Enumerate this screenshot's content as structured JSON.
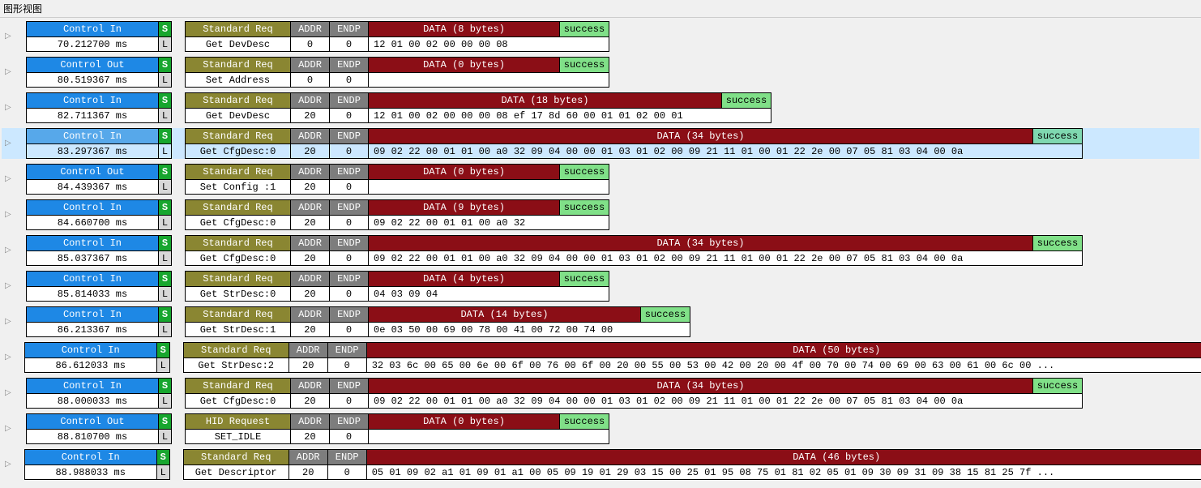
{
  "panelTitle": "图形视图",
  "labels": {
    "stdReq": "Standard Req",
    "hidReq": "HID Request",
    "addr": "ADDR",
    "endp": "ENDP",
    "success": "success",
    "sBadge": "S",
    "lBadge": "L"
  },
  "colors": {
    "controlBlue": "#1e88e5",
    "reqOlive": "#8a8632",
    "addrGray": "#7d7d7d",
    "dataRed": "#8b0e16",
    "successGreen": "#80e088",
    "badgeGreen": "#17a62e",
    "selectedBg": "#cce8ff"
  },
  "dataWidths": {
    "b8": 236,
    "b18": 436,
    "b34": 820,
    "b0": 236,
    "b9": 236,
    "b4": 236,
    "b14": 336,
    "b50": 1160,
    "b46": 1160
  },
  "rows": [
    {
      "dir": "Control In",
      "time": "70.212700 ms",
      "reqType": "std",
      "req": "Get DevDesc",
      "addr": "0",
      "endp": "0",
      "dataH": "DATA (8 bytes)",
      "dataV": "12 01 00 02 00 00 00 08",
      "dw": 236,
      "selected": false
    },
    {
      "dir": "Control Out",
      "time": "80.519367 ms",
      "reqType": "std",
      "req": "Set Address",
      "addr": "0",
      "endp": "0",
      "dataH": "DATA (0 bytes)",
      "dataV": "",
      "dw": 236,
      "selected": false
    },
    {
      "dir": "Control In",
      "time": "82.711367 ms",
      "reqType": "std",
      "req": "Get DevDesc",
      "addr": "20",
      "endp": "0",
      "dataH": "DATA (18 bytes)",
      "dataV": "12 01 00 02 00 00 00 08 ef 17 8d 60 00 01 01 02 00 01",
      "dw": 436,
      "selected": false
    },
    {
      "dir": "Control In",
      "time": "83.297367 ms",
      "reqType": "std",
      "req": "Get CfgDesc:0",
      "addr": "20",
      "endp": "0",
      "dataH": "DATA (34 bytes)",
      "dataV": "09 02 22 00 01 01 00 a0 32 09 04 00 00 01 03 01 02 00 09 21 11 01 00 01 22 2e 00 07 05 81 03 04 00 0a",
      "dw": 820,
      "selected": true
    },
    {
      "dir": "Control Out",
      "time": "84.439367 ms",
      "reqType": "std",
      "req": "Set Config :1",
      "addr": "20",
      "endp": "0",
      "dataH": "DATA (0 bytes)",
      "dataV": "",
      "dw": 236,
      "selected": false
    },
    {
      "dir": "Control In",
      "time": "84.660700 ms",
      "reqType": "std",
      "req": "Get CfgDesc:0",
      "addr": "20",
      "endp": "0",
      "dataH": "DATA (9 bytes)",
      "dataV": "09 02 22 00 01 01 00 a0 32",
      "dw": 236,
      "selected": false
    },
    {
      "dir": "Control In",
      "time": "85.037367 ms",
      "reqType": "std",
      "req": "Get CfgDesc:0",
      "addr": "20",
      "endp": "0",
      "dataH": "DATA (34 bytes)",
      "dataV": "09 02 22 00 01 01 00 a0 32 09 04 00 00 01 03 01 02 00 09 21 11 01 00 01 22 2e 00 07 05 81 03 04 00 0a",
      "dw": 820,
      "selected": false
    },
    {
      "dir": "Control In",
      "time": "85.814033 ms",
      "reqType": "std",
      "req": "Get StrDesc:0",
      "addr": "20",
      "endp": "0",
      "dataH": "DATA (4 bytes)",
      "dataV": "04 03 09 04",
      "dw": 236,
      "selected": false
    },
    {
      "dir": "Control In",
      "time": "86.213367 ms",
      "reqType": "std",
      "req": "Get StrDesc:1",
      "addr": "20",
      "endp": "0",
      "dataH": "DATA (14 bytes)",
      "dataV": "0e 03 50 00 69 00 78 00 41 00 72 00 74 00",
      "dw": 336,
      "selected": false
    },
    {
      "dir": "Control In",
      "time": "86.612033 ms",
      "reqType": "std",
      "req": "Get StrDesc:2",
      "addr": "20",
      "endp": "0",
      "dataH": "DATA (50 bytes)",
      "dataV": "32 03 6c 00 65 00 6e 00 6f 00 76 00 6f 00 20 00 55 00 53 00 42 00 20 00 4f 00 70 00 74 00 69 00 63 00 61 00 6c 00 ...",
      "dw": 1160,
      "selected": false
    },
    {
      "dir": "Control In",
      "time": "88.000033 ms",
      "reqType": "std",
      "req": "Get CfgDesc:0",
      "addr": "20",
      "endp": "0",
      "dataH": "DATA (34 bytes)",
      "dataV": "09 02 22 00 01 01 00 a0 32 09 04 00 00 01 03 01 02 00 09 21 11 01 00 01 22 2e 00 07 05 81 03 04 00 0a",
      "dw": 820,
      "selected": false
    },
    {
      "dir": "Control Out",
      "time": "88.810700 ms",
      "reqType": "hid",
      "req": "SET_IDLE",
      "addr": "20",
      "endp": "0",
      "dataH": "DATA (0 bytes)",
      "dataV": "",
      "dw": 236,
      "selected": false
    },
    {
      "dir": "Control In",
      "time": "88.988033 ms",
      "reqType": "std",
      "req": "Get Descriptor",
      "addr": "20",
      "endp": "0",
      "dataH": "DATA (46 bytes)",
      "dataV": "05 01 09 02 a1 01 09 01 a1 00 05 09 19 01 29 03 15 00 25 01 95 08 75 01 81 02 05 01 09 30 09 31 09 38 15 81 25 7f ...",
      "dw": 1160,
      "selected": false
    }
  ]
}
